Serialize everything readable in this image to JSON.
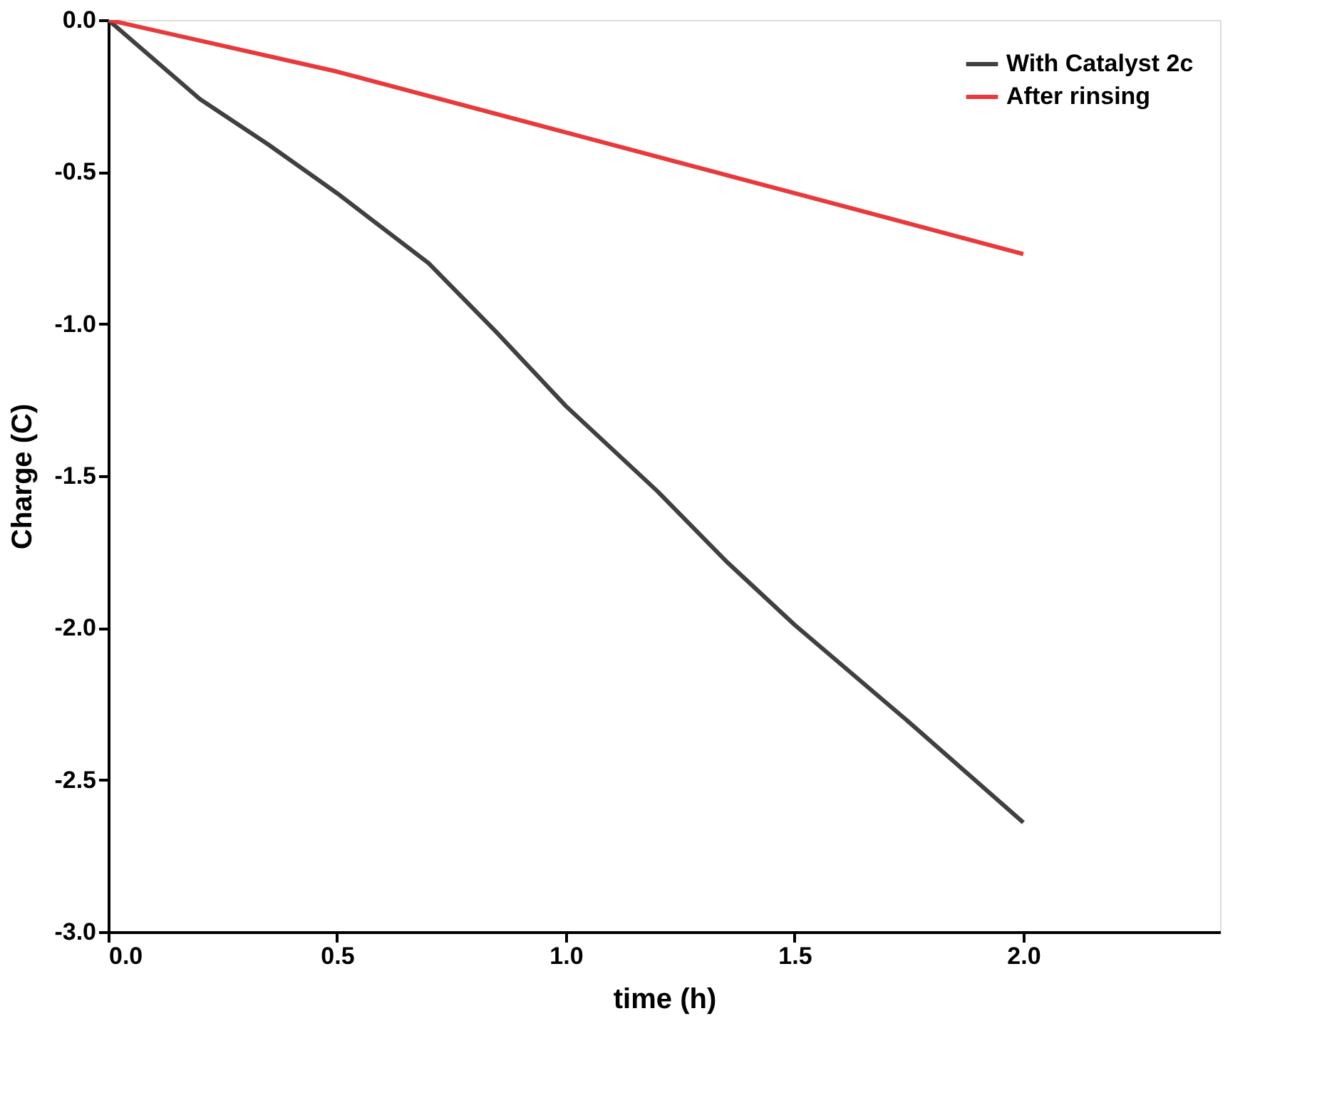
{
  "chart_data": {
    "type": "line",
    "xlabel": "time (h)",
    "ylabel": "Charge (C)",
    "xlim": [
      0,
      2.43
    ],
    "xticks": [
      {
        "value": 0,
        "label": "0.0"
      },
      {
        "value": 0.5,
        "label": "0.5"
      },
      {
        "value": 1,
        "label": "1.0"
      },
      {
        "value": 1.5,
        "label": "1.5"
      },
      {
        "value": 2,
        "label": "2.0"
      }
    ],
    "ylim": [
      -3,
      0
    ],
    "yticks": [
      {
        "value": 0,
        "label": "0.0"
      },
      {
        "value": -0.5,
        "label": "-0.5"
      },
      {
        "value": -1,
        "label": "-1.0"
      },
      {
        "value": -1.5,
        "label": "-1.5"
      },
      {
        "value": -2,
        "label": "-2.0"
      },
      {
        "value": -2.5,
        "label": "-2.5"
      },
      {
        "value": -3,
        "label": "-3.0"
      }
    ],
    "legend": "top right",
    "grid": false,
    "marker": "none",
    "line_style": "solid",
    "series": [
      {
        "name": "With Catalyst 2c",
        "color": "#404040",
        "x": [
          0,
          0.1,
          0.2,
          0.35,
          0.5,
          0.7,
          0.85,
          1.0,
          1.2,
          1.35,
          1.5,
          1.75,
          2.0
        ],
        "values": [
          0,
          -0.13,
          -0.26,
          -0.41,
          -0.57,
          -0.8,
          -1.03,
          -1.27,
          -1.55,
          -1.78,
          -1.99,
          -2.31,
          -2.64
        ]
      },
      {
        "name": "After rinsing",
        "color": "#e8393b",
        "x": [
          0,
          0.5,
          1.0,
          1.5,
          2.0
        ],
        "values": [
          0,
          -0.17,
          -0.37,
          -0.57,
          -0.77
        ]
      }
    ]
  }
}
